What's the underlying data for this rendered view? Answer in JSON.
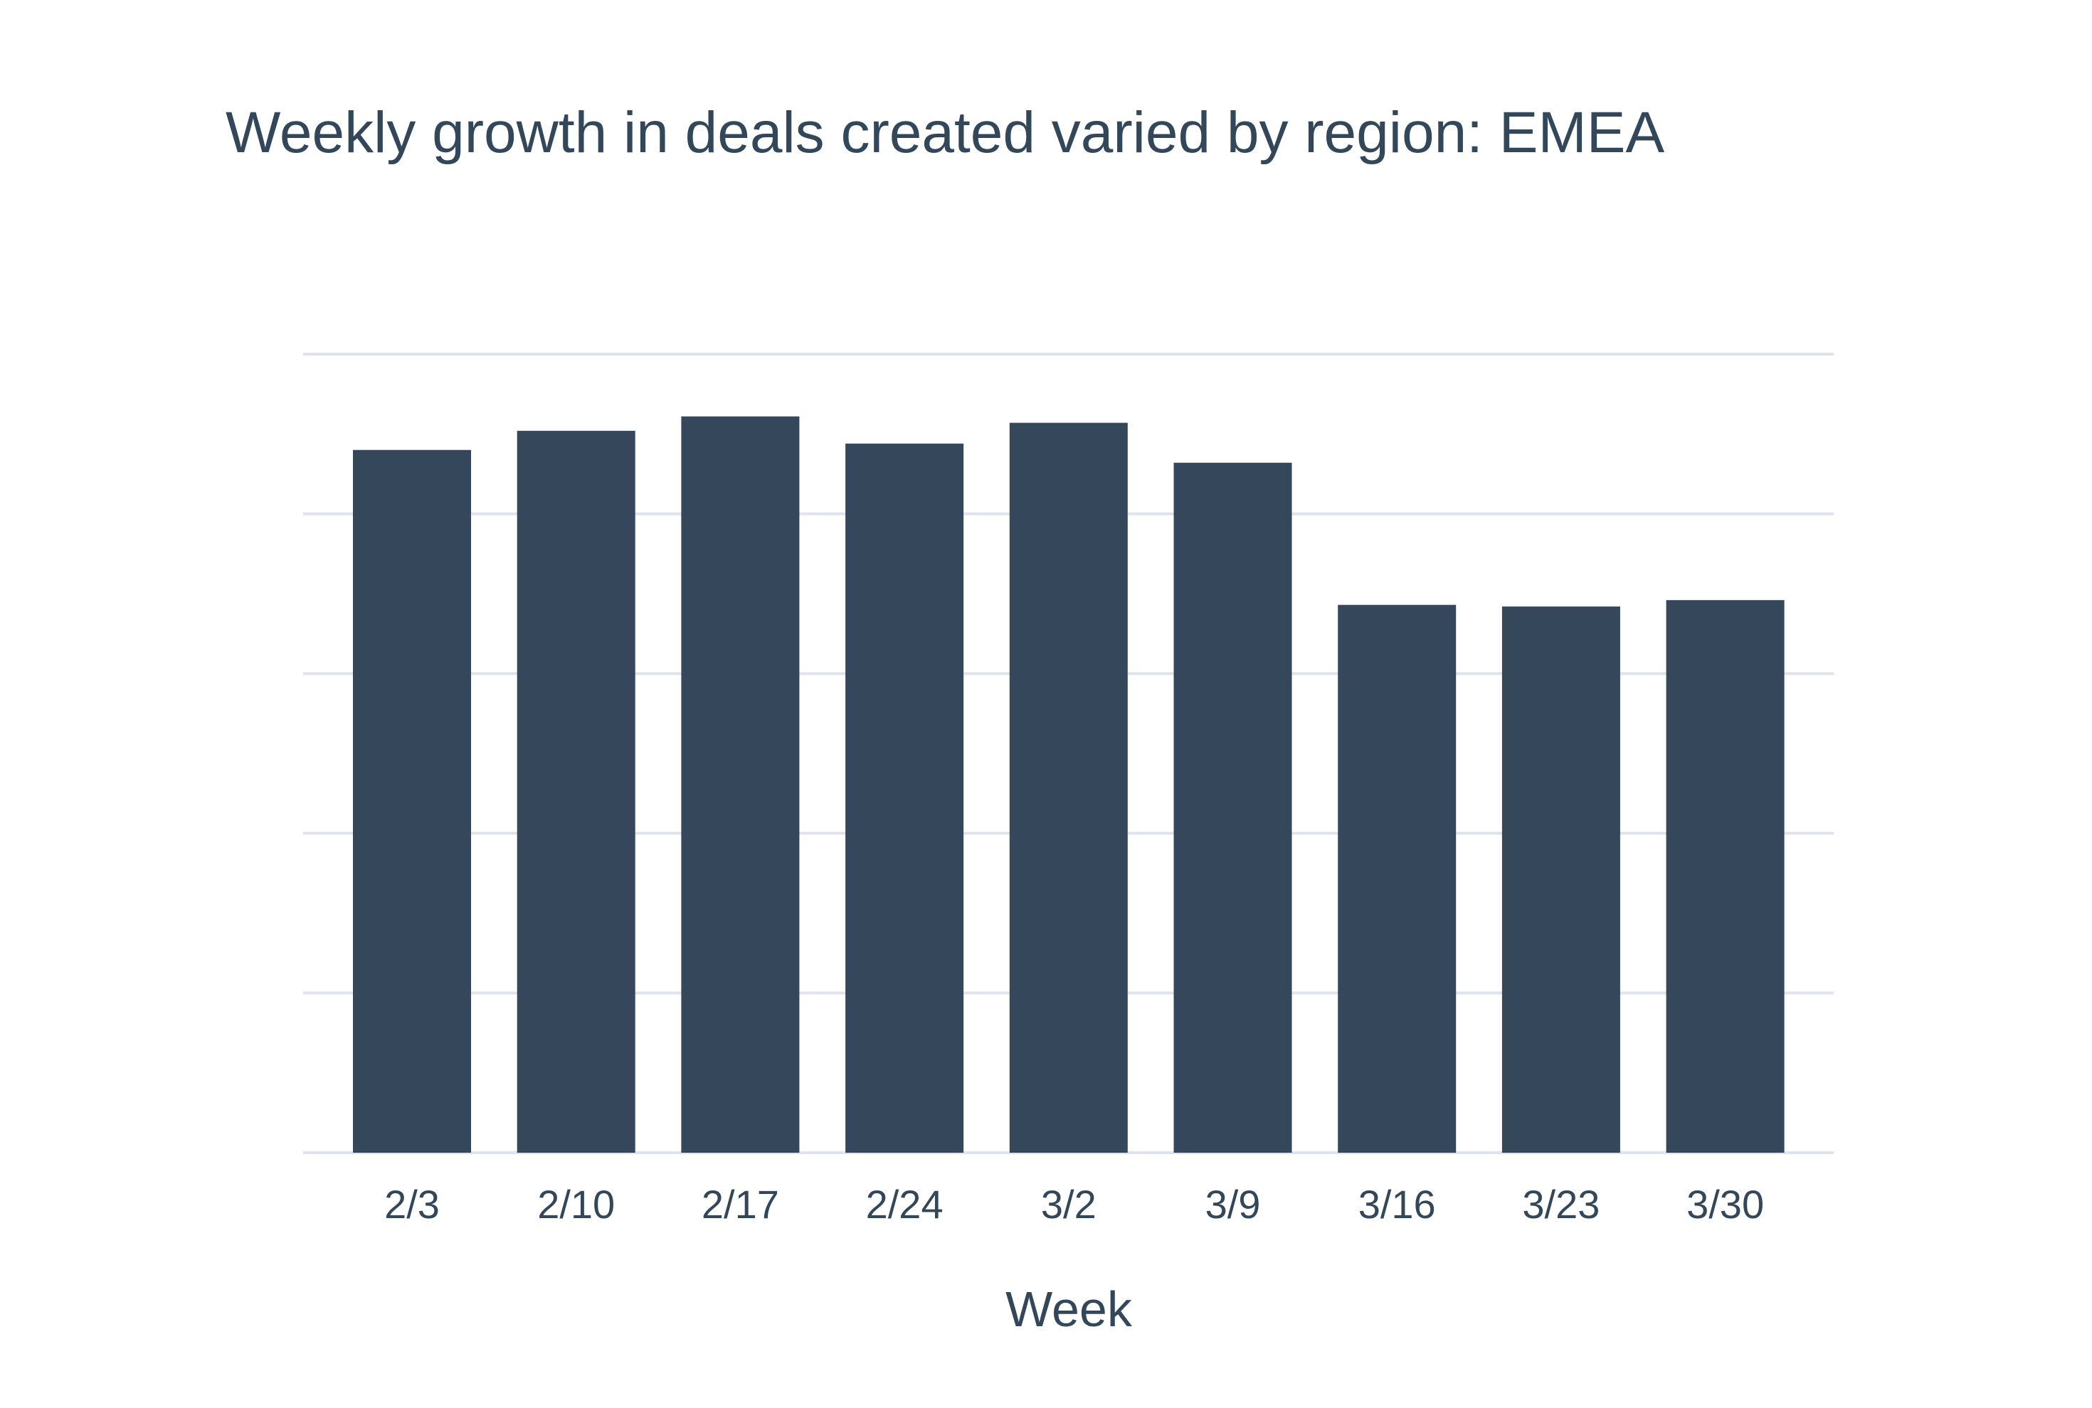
{
  "chart_data": {
    "type": "bar",
    "title": "Weekly growth in deals created varied by region: EMEA",
    "xlabel": "Week",
    "ylabel": "",
    "categories": [
      "2/3",
      "2/10",
      "2/17",
      "2/24",
      "3/2",
      "3/9",
      "3/16",
      "3/23",
      "3/30"
    ],
    "values": [
      4.4,
      4.52,
      4.61,
      4.44,
      4.57,
      4.32,
      3.43,
      3.42,
      3.46
    ],
    "ylim": [
      0,
      5
    ],
    "y_tick_labels_shown": false,
    "grid": true,
    "bar_color": "#35475b",
    "grid_color": "#dfe3eb",
    "text_color": "#33475b"
  }
}
